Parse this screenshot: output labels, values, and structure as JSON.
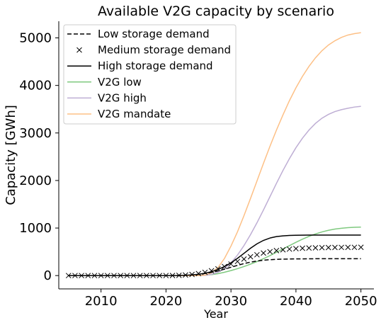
{
  "chart_data": {
    "type": "line",
    "title": "Available V2G capacity by scenario",
    "xlabel": "Year",
    "ylabel": "Capacity [GWh]",
    "xlim": [
      2003.5,
      2052
    ],
    "ylim": [
      -280,
      5350
    ],
    "xticks": [
      2010,
      2020,
      2030,
      2040,
      2050
    ],
    "yticks": [
      0,
      1000,
      2000,
      3000,
      4000,
      5000
    ],
    "grid": false,
    "legend_position": "top-left",
    "x": [
      2005,
      2006,
      2007,
      2008,
      2009,
      2010,
      2011,
      2012,
      2013,
      2014,
      2015,
      2016,
      2017,
      2018,
      2019,
      2020,
      2021,
      2022,
      2023,
      2024,
      2025,
      2026,
      2027,
      2028,
      2029,
      2030,
      2031,
      2032,
      2033,
      2034,
      2035,
      2036,
      2037,
      2038,
      2039,
      2040,
      2041,
      2042,
      2043,
      2044,
      2045,
      2046,
      2047,
      2048,
      2049,
      2050
    ],
    "series": [
      {
        "name": "Low storage demand",
        "color": "#000000",
        "style": "dashed",
        "values": [
          0,
          0,
          0,
          0,
          0,
          0,
          0,
          0,
          0,
          0,
          0,
          0,
          0,
          0,
          0,
          0,
          0,
          3,
          7,
          14,
          26,
          44,
          68,
          98,
          135,
          175,
          215,
          252,
          283,
          306,
          323,
          334,
          341,
          346,
          349,
          351,
          352,
          353,
          354,
          354,
          354,
          354,
          355,
          355,
          355,
          355
        ]
      },
      {
        "name": "Medium storage demand",
        "color": "#000000",
        "style": "x-markers",
        "values": [
          0,
          0,
          0,
          0,
          0,
          0,
          0,
          0,
          0,
          0,
          0,
          0,
          0,
          0,
          0,
          0,
          1,
          5,
          12,
          24,
          42,
          68,
          102,
          142,
          190,
          242,
          296,
          348,
          396,
          438,
          474,
          503,
          526,
          543,
          557,
          567,
          574,
          580,
          584,
          587,
          589,
          591,
          592,
          593,
          594,
          595
        ]
      },
      {
        "name": "High storage demand",
        "color": "#000000",
        "style": "solid",
        "values": [
          0,
          0,
          0,
          0,
          0,
          0,
          0,
          0,
          0,
          0,
          0,
          0,
          0,
          0,
          0,
          0,
          0,
          2,
          6,
          14,
          28,
          50,
          82,
          128,
          190,
          268,
          362,
          468,
          574,
          668,
          740,
          790,
          820,
          836,
          844,
          848,
          850,
          851,
          852,
          852,
          852,
          852,
          852,
          852,
          852,
          852
        ]
      },
      {
        "name": "V2G low",
        "color": "#7fc97f",
        "style": "solid",
        "values": [
          0,
          0,
          0,
          0,
          0,
          0,
          0,
          0,
          0,
          0,
          0,
          0,
          0,
          0,
          0,
          0,
          0,
          0,
          0,
          0,
          2,
          8,
          20,
          40,
          70,
          105,
          145,
          190,
          240,
          295,
          355,
          420,
          490,
          560,
          630,
          700,
          765,
          825,
          875,
          918,
          952,
          978,
          996,
          1008,
          1016,
          1020
        ]
      },
      {
        "name": "V2G high",
        "color": "#beaed4",
        "style": "solid",
        "values": [
          0,
          0,
          0,
          0,
          0,
          0,
          0,
          0,
          0,
          0,
          0,
          0,
          0,
          0,
          0,
          0,
          0,
          0,
          0,
          0,
          0,
          5,
          25,
          70,
          150,
          270,
          430,
          630,
          860,
          1110,
          1380,
          1660,
          1940,
          2210,
          2460,
          2690,
          2890,
          3060,
          3200,
          3310,
          3390,
          3450,
          3490,
          3520,
          3545,
          3560
        ]
      },
      {
        "name": "V2G mandate",
        "color": "#fdc086",
        "style": "solid",
        "values": [
          0,
          0,
          0,
          0,
          0,
          0,
          0,
          0,
          0,
          0,
          0,
          0,
          0,
          0,
          0,
          0,
          0,
          0,
          0,
          0,
          0,
          10,
          60,
          170,
          360,
          620,
          920,
          1260,
          1620,
          1990,
          2360,
          2720,
          3060,
          3380,
          3680,
          3950,
          4190,
          4400,
          4580,
          4730,
          4850,
          4940,
          5010,
          5060,
          5090,
          5110
        ]
      }
    ]
  }
}
